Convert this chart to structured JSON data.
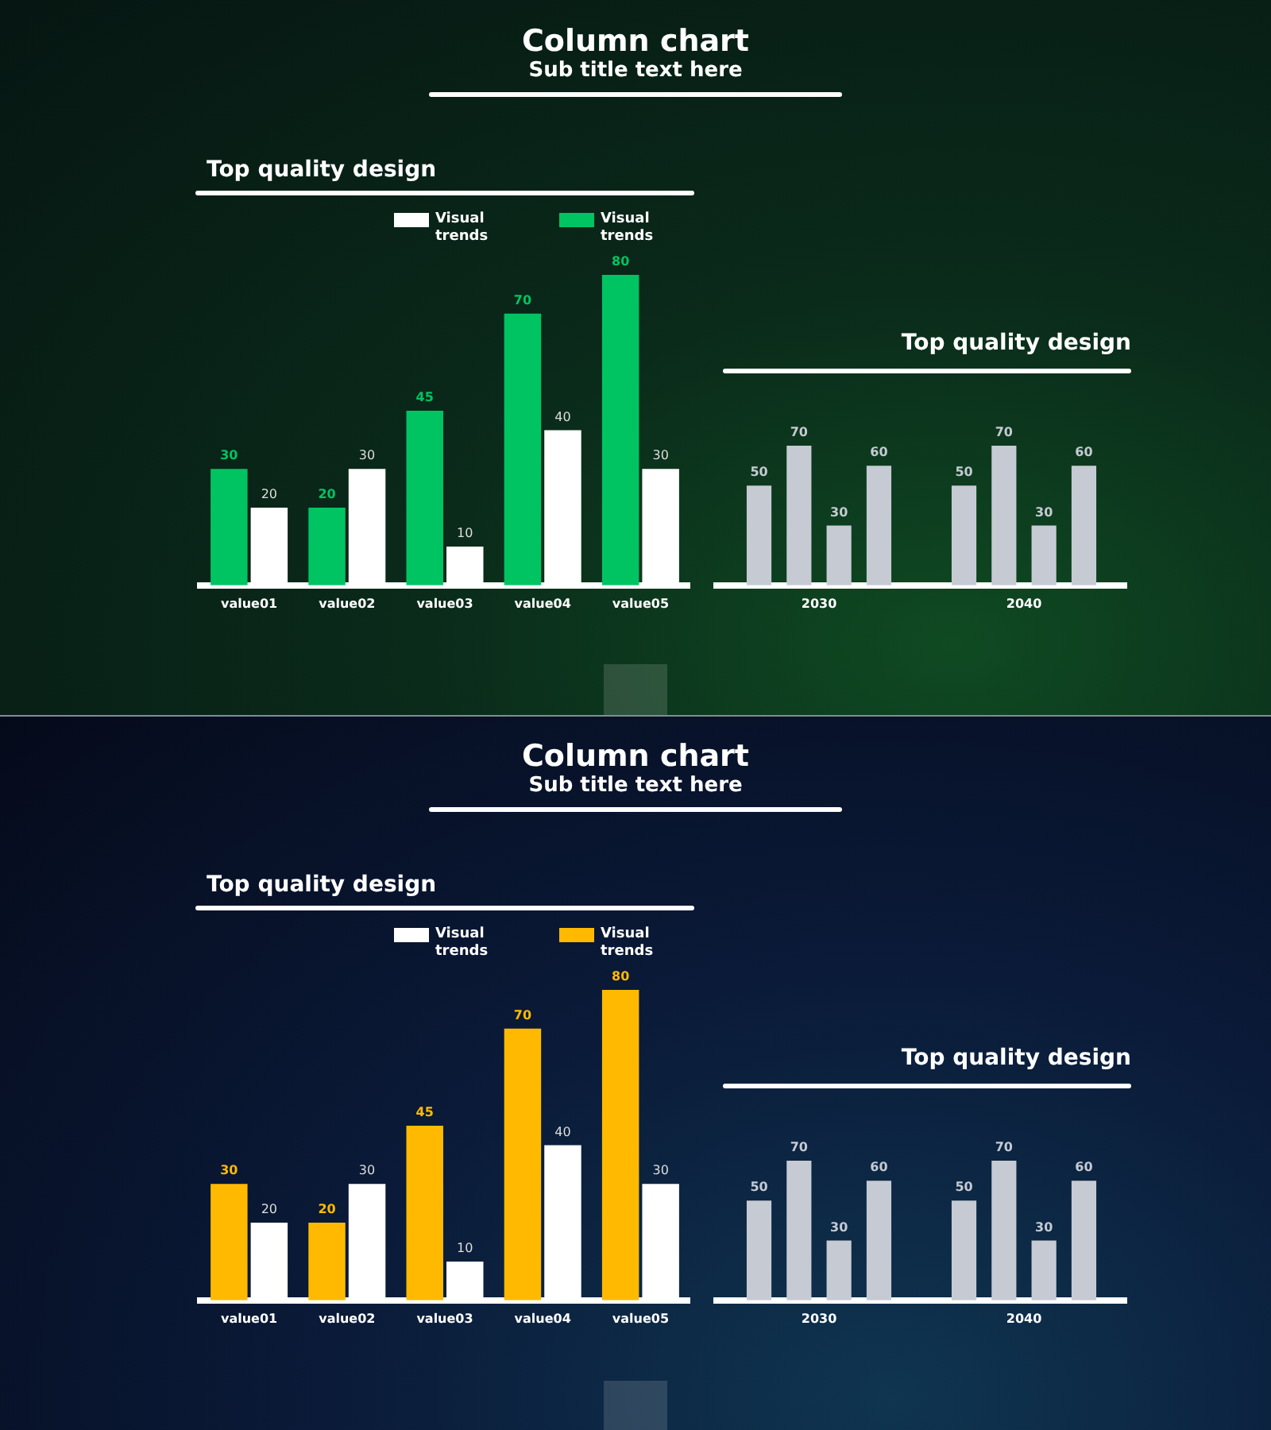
{
  "chart_data": [
    {
      "type": "other",
      "title": "Column chart",
      "subtitle": "Sub title text here"
    },
    {
      "type": "bar",
      "title": "Top quality design",
      "categories": [
        "value01",
        "value02",
        "value03",
        "value04",
        "value05"
      ],
      "series": [
        {
          "name": "Visual trends",
          "color": "#00c462",
          "values": [
            30,
            20,
            45,
            70,
            80
          ]
        },
        {
          "name": "Visual trends",
          "color": "#ffffff",
          "values": [
            20,
            30,
            10,
            40,
            30
          ]
        }
      ],
      "legend": "top",
      "data_labels": true,
      "tick_labels": "x"
    },
    {
      "type": "bar",
      "title": "Top quality design",
      "categories": [
        "2030",
        "2040"
      ],
      "series": [
        {
          "color": "#c5cad3",
          "values": [
            50,
            50
          ]
        },
        {
          "color": "#c5cad3",
          "values": [
            70,
            70
          ]
        },
        {
          "color": "#c5cad3",
          "values": [
            30,
            30
          ]
        },
        {
          "color": "#c5cad3",
          "values": [
            60,
            60
          ]
        }
      ],
      "data_labels": true,
      "tick_labels": "x"
    },
    {
      "type": "other",
      "title": "Column chart",
      "subtitle": "Sub title text here"
    },
    {
      "type": "bar",
      "title": "Top quality design",
      "categories": [
        "value01",
        "value02",
        "value03",
        "value04",
        "value05"
      ],
      "series": [
        {
          "name": "Visual trends",
          "color": "#ffba00",
          "values": [
            30,
            20,
            45,
            70,
            80
          ]
        },
        {
          "name": "Visual trends",
          "color": "#ffffff",
          "values": [
            20,
            30,
            10,
            40,
            30
          ]
        }
      ],
      "legend": "top",
      "data_labels": true,
      "tick_labels": "x"
    },
    {
      "type": "bar",
      "title": "Top quality design",
      "categories": [
        "2030",
        "2040"
      ],
      "series": [
        {
          "color": "#c5cad3",
          "values": [
            50,
            50
          ]
        },
        {
          "color": "#c5cad3",
          "values": [
            70,
            70
          ]
        },
        {
          "color": "#c5cad3",
          "values": [
            30,
            30
          ]
        },
        {
          "color": "#c5cad3",
          "values": [
            60,
            60
          ]
        }
      ],
      "data_labels": true,
      "tick_labels": "x"
    }
  ]
}
